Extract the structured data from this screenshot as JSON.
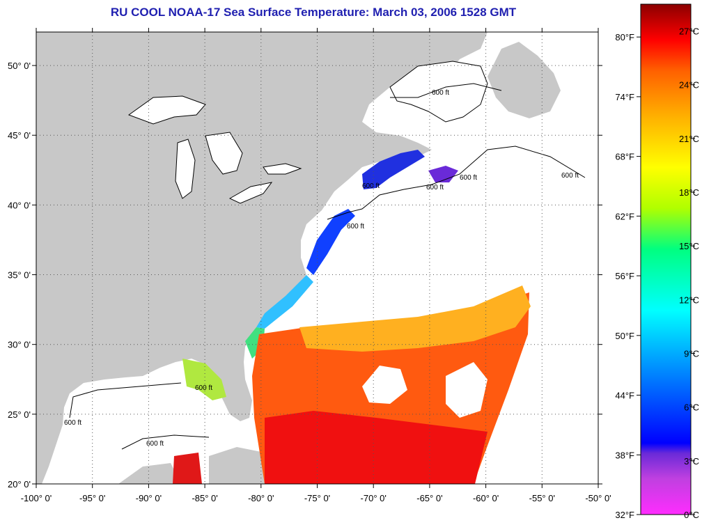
{
  "title": "RU COOL  NOAA-17  Sea Surface Temperature:  March 03, 2006 1528 GMT",
  "map": {
    "lon_range": [
      -100,
      -50
    ],
    "lat_range": [
      20,
      52.4
    ],
    "lon_labels": [
      "-100° 0'",
      "-95° 0'",
      "-90° 0'",
      "-85° 0'",
      "-80° 0'",
      "-75° 0'",
      "-70° 0'",
      "-65° 0'",
      "-60° 0'",
      "-55° 0'",
      "-50° 0'"
    ],
    "lat_labels": [
      "20° 0'",
      "25° 0'",
      "30° 0'",
      "35° 0'",
      "40° 0'",
      "45° 0'",
      "50° 0'"
    ],
    "grid": "dotted",
    "land_color": "#c8c8c8",
    "ocean_cloud_color": "#ffffff",
    "isobath_labels": [
      "600 ft",
      "600 ft",
      "600 ft",
      "600 ft",
      "600 ft",
      "600 ft",
      "600 ft",
      "600 ft",
      "600 ft"
    ]
  },
  "colorbar": {
    "fahrenheit_labels": [
      "80°F",
      "74°F",
      "68°F",
      "62°F",
      "56°F",
      "50°F",
      "44°F",
      "38°F",
      "32°F"
    ],
    "celsius_labels": [
      "27°C",
      "24°C",
      "21°C",
      "18°C",
      "15°C",
      "12°C",
      "9°C",
      "6°C",
      "3°C",
      "0°C"
    ],
    "celsius_range": [
      0,
      28.5
    ],
    "colors": [
      "#ff2cff",
      "#8a2be2",
      "#0000ff",
      "#0090ff",
      "#00ffff",
      "#00ff80",
      "#c0ff00",
      "#ffff00",
      "#ffb000",
      "#ff6000",
      "#ff0000",
      "#b00000",
      "#8b0000"
    ]
  }
}
